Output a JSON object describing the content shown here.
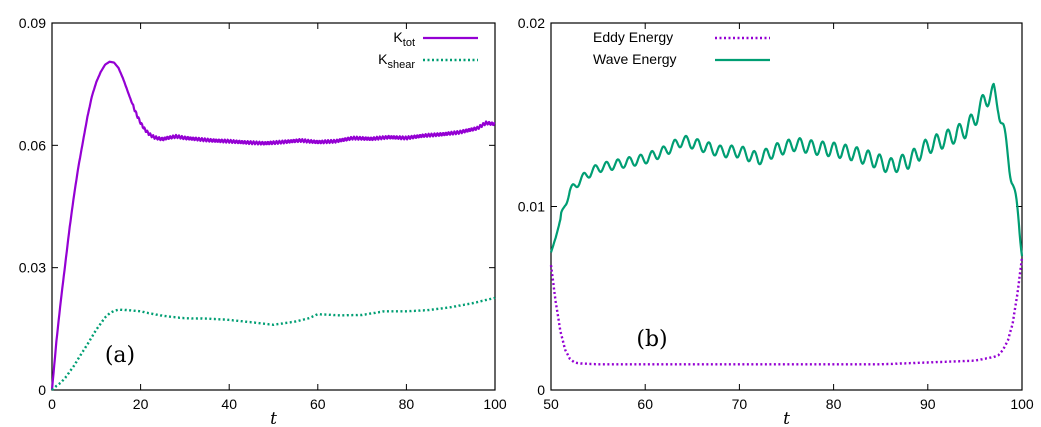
{
  "chart_data": [
    {
      "type": "line",
      "panel_label": "(a)",
      "xlabel": "t",
      "xlim": [
        0,
        100
      ],
      "ylim": [
        0,
        0.09
      ],
      "xticks": [
        "0",
        "20",
        "40",
        "60",
        "80",
        "100"
      ],
      "yticks": [
        "0",
        "0.03",
        "0.06",
        "0.09"
      ],
      "legend_position": "top-right",
      "series": [
        {
          "name_main": "K",
          "name_sub": "tot",
          "style": "solid",
          "color": "#9400d3",
          "x": [
            0,
            1,
            2,
            3,
            4,
            5,
            6,
            7,
            8,
            9,
            10,
            11,
            12,
            13,
            14,
            15,
            16,
            17,
            18,
            19,
            20,
            21,
            22,
            23,
            24,
            25,
            26,
            28,
            30,
            33,
            36,
            40,
            44,
            48,
            52,
            56,
            60,
            64,
            68,
            72,
            76,
            80,
            84,
            88,
            92,
            96,
            98,
            100
          ],
          "y": [
            0.0,
            0.012,
            0.022,
            0.031,
            0.04,
            0.048,
            0.055,
            0.061,
            0.067,
            0.072,
            0.0755,
            0.078,
            0.0798,
            0.0805,
            0.0803,
            0.079,
            0.0765,
            0.0735,
            0.0705,
            0.0678,
            0.0655,
            0.0638,
            0.0627,
            0.062,
            0.0617,
            0.0615,
            0.0618,
            0.0622,
            0.0618,
            0.0615,
            0.0612,
            0.061,
            0.0607,
            0.0605,
            0.0608,
            0.0612,
            0.0608,
            0.061,
            0.0618,
            0.0616,
            0.062,
            0.0618,
            0.0624,
            0.0627,
            0.0632,
            0.0642,
            0.0655,
            0.0652
          ]
        },
        {
          "name_main": "K",
          "name_sub": "shear",
          "style": "dotted",
          "color": "#009e73",
          "x": [
            0,
            1,
            2,
            3,
            4,
            5,
            6,
            7,
            8,
            9,
            10,
            11,
            12,
            13,
            14,
            15,
            17,
            20,
            22,
            25,
            28,
            30,
            35,
            40,
            45,
            50,
            55,
            58,
            60,
            65,
            70,
            75,
            80,
            85,
            90,
            95,
            100
          ],
          "y": [
            0.0,
            0.001,
            0.0018,
            0.003,
            0.0045,
            0.006,
            0.0078,
            0.0095,
            0.0112,
            0.013,
            0.0148,
            0.0163,
            0.0178,
            0.0188,
            0.0194,
            0.0197,
            0.0196,
            0.0193,
            0.0188,
            0.0182,
            0.0178,
            0.0176,
            0.0175,
            0.0172,
            0.0166,
            0.016,
            0.0168,
            0.0176,
            0.0186,
            0.0183,
            0.0184,
            0.0193,
            0.0193,
            0.0196,
            0.0203,
            0.0213,
            0.0226
          ]
        }
      ]
    },
    {
      "type": "line",
      "panel_label": "(b)",
      "xlabel": "t",
      "xlim": [
        50,
        100
      ],
      "ylim": [
        0,
        0.02
      ],
      "xticks": [
        "50",
        "60",
        "70",
        "80",
        "90",
        "100"
      ],
      "yticks": [
        "0",
        "0.01",
        "0.02"
      ],
      "legend_position": "top-left",
      "series": [
        {
          "name": "Eddy Energy",
          "style": "dotted",
          "color": "#9400d3",
          "x": [
            50,
            50.5,
            51,
            51.5,
            52,
            52.5,
            53,
            55,
            60,
            65,
            70,
            75,
            80,
            85,
            90,
            95,
            96,
            97,
            97.5,
            98,
            98.5,
            99,
            99.5,
            100
          ],
          "y": [
            0.0068,
            0.0048,
            0.0032,
            0.0022,
            0.0017,
            0.0015,
            0.00145,
            0.0014,
            0.0014,
            0.0014,
            0.0014,
            0.0014,
            0.0014,
            0.0014,
            0.0015,
            0.0016,
            0.0017,
            0.0018,
            0.0019,
            0.0022,
            0.0027,
            0.0036,
            0.0052,
            0.0072
          ]
        },
        {
          "name": "Wave Energy",
          "style": "solid",
          "color": "#009e73",
          "x": [
            50,
            50.5,
            51,
            51.5,
            52,
            53,
            54,
            55,
            57,
            60,
            62,
            64,
            66,
            68,
            70,
            72,
            74,
            76,
            78,
            80,
            82,
            84,
            86,
            88,
            90,
            92,
            94,
            95,
            96,
            97,
            97.5,
            98,
            98.5,
            99,
            99.5,
            100
          ],
          "y": [
            0.0075,
            0.0083,
            0.0093,
            0.0102,
            0.0108,
            0.0114,
            0.0118,
            0.0121,
            0.0123,
            0.0126,
            0.013,
            0.0136,
            0.0133,
            0.013,
            0.013,
            0.0126,
            0.0131,
            0.0134,
            0.0132,
            0.0131,
            0.0129,
            0.0126,
            0.0122,
            0.0125,
            0.0133,
            0.0137,
            0.0142,
            0.0148,
            0.0158,
            0.0162,
            0.0155,
            0.0142,
            0.0128,
            0.0114,
            0.0096,
            0.0078
          ]
        }
      ]
    }
  ]
}
